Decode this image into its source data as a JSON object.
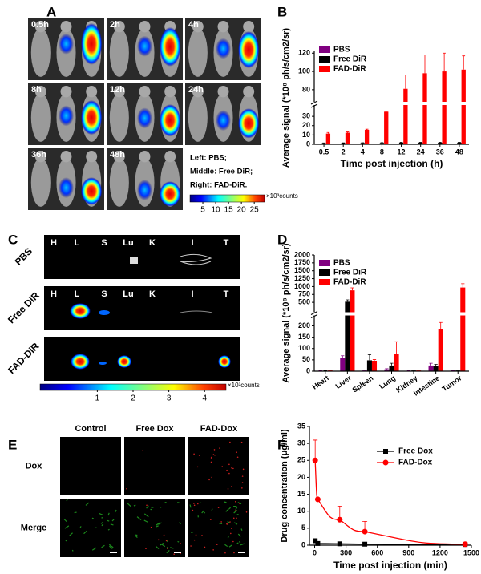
{
  "panel_labels": [
    "A",
    "B",
    "C",
    "D",
    "E",
    "F"
  ],
  "panel_a": {
    "times": [
      "0.5h",
      "2h",
      "4h",
      "8h",
      "12h",
      "24h",
      "36h",
      "48h"
    ],
    "legend": [
      "Left: PBS;",
      "Middle: Free DiR;",
      "Right: FAD-DiR."
    ],
    "colorbar": {
      "lim": [
        0,
        29
      ],
      "ticks": [
        5,
        10,
        15,
        20,
        25
      ],
      "unit": "×10³counts"
    }
  },
  "panel_c": {
    "organs": [
      "H",
      "L",
      "S",
      "Lu",
      "K",
      "I",
      "T"
    ],
    "rows": [
      "PBS",
      "Free DiR",
      "FAD-DiR"
    ],
    "colorbar": {
      "lim": [
        -0.6,
        4.6
      ],
      "ticks": [
        1,
        2,
        3,
        4
      ],
      "unit": "×10³counts"
    }
  },
  "panel_e": {
    "columns": [
      "Control",
      "Free Dox",
      "FAD-Dox"
    ],
    "rows": [
      "Dox",
      "Merge"
    ]
  },
  "chart_data": [
    {
      "type": "bar",
      "ylabel": "Average signal (*10⁸ ph/s/cm2/sr)",
      "xlabel": "Time post injection (h)",
      "categories": [
        "0.5",
        "2",
        "4",
        "8",
        "12",
        "24",
        "36",
        "48"
      ],
      "series": [
        {
          "name": "PBS",
          "color": "#800080",
          "values": [
            0.3,
            0.3,
            0.3,
            0.3,
            0.3,
            0.3,
            0.3,
            0.3
          ],
          "errors": [
            0.1,
            0.1,
            0.1,
            0.1,
            0.1,
            0.1,
            0.1,
            0.1
          ]
        },
        {
          "name": "Free DiR",
          "color": "#000000",
          "values": [
            1.2,
            1.3,
            1.4,
            1.5,
            1.8,
            1.8,
            1.8,
            1.8
          ],
          "errors": [
            0.3,
            0.3,
            0.3,
            0.3,
            0.3,
            0.3,
            0.3,
            0.3
          ]
        },
        {
          "name": "FAD-DiR",
          "color": "#ff0000",
          "values": [
            11.5,
            12.5,
            15.5,
            35,
            81,
            98,
            100,
            102
          ],
          "errors": [
            1.2,
            0.8,
            0.7,
            0.5,
            15,
            20,
            20,
            15
          ]
        }
      ],
      "segments": [
        {
          "ylim": [
            0,
            37
          ],
          "yticks": [
            0,
            10,
            20,
            30
          ]
        },
        {
          "ylim": [
            72,
            122
          ],
          "yticks": [
            80,
            100,
            120
          ]
        }
      ],
      "legend": "upper left"
    },
    {
      "type": "bar",
      "ylabel": "Average signal (*10⁸ ph/s/cm2/sr)",
      "categories": [
        "Heart",
        "Liver",
        "Spleen",
        "Lung",
        "Kidney",
        "Intestine",
        "Tumor"
      ],
      "series": [
        {
          "name": "PBS",
          "color": "#800080",
          "values": [
            2,
            60,
            3,
            8,
            2,
            25,
            2
          ],
          "errors": [
            1,
            8,
            1,
            3,
            1,
            10,
            1
          ]
        },
        {
          "name": "Free DiR",
          "color": "#000000",
          "values": [
            2,
            520,
            48,
            25,
            3,
            22,
            3
          ],
          "errors": [
            1,
            60,
            25,
            10,
            1,
            8,
            1
          ]
        },
        {
          "name": "FAD-DiR",
          "color": "#ff0000",
          "values": [
            3,
            880,
            46,
            75,
            3,
            185,
            970
          ],
          "errors": [
            1,
            80,
            5,
            55,
            1,
            30,
            120
          ]
        }
      ],
      "segments": [
        {
          "ylim": [
            0,
            230
          ],
          "yticks": [
            0,
            50,
            100,
            150,
            200
          ]
        },
        {
          "ylim": [
            300,
            2000
          ],
          "yticks": [
            500,
            750,
            1000,
            1250,
            1500,
            1750,
            2000
          ]
        }
      ],
      "legend": "upper left"
    },
    {
      "type": "line",
      "ylabel": "Drug concentration (μg/ml)",
      "xlabel": "Time post injection (min)",
      "series": [
        {
          "name": "Free Dox",
          "color": "#000000",
          "marker": "square",
          "x": [
            5,
            30,
            240,
            480,
            1440
          ],
          "values": [
            1.3,
            0.5,
            0.4,
            0.3,
            0.2
          ]
        },
        {
          "name": "FAD-Dox",
          "color": "#ff0000",
          "marker": "circle",
          "x": [
            5,
            30,
            240,
            480,
            1440
          ],
          "values": [
            25,
            13.5,
            7.5,
            4,
            0.3
          ],
          "errors": [
            6,
            0,
            4,
            3,
            0.3
          ]
        }
      ],
      "xlim": [
        -50,
        1500
      ],
      "xticks": [
        0,
        300,
        600,
        900,
        1200,
        1500
      ],
      "ylim": [
        0,
        35
      ],
      "yticks": [
        0,
        5,
        10,
        15,
        20,
        25,
        30,
        35
      ],
      "legend": "center right"
    }
  ]
}
